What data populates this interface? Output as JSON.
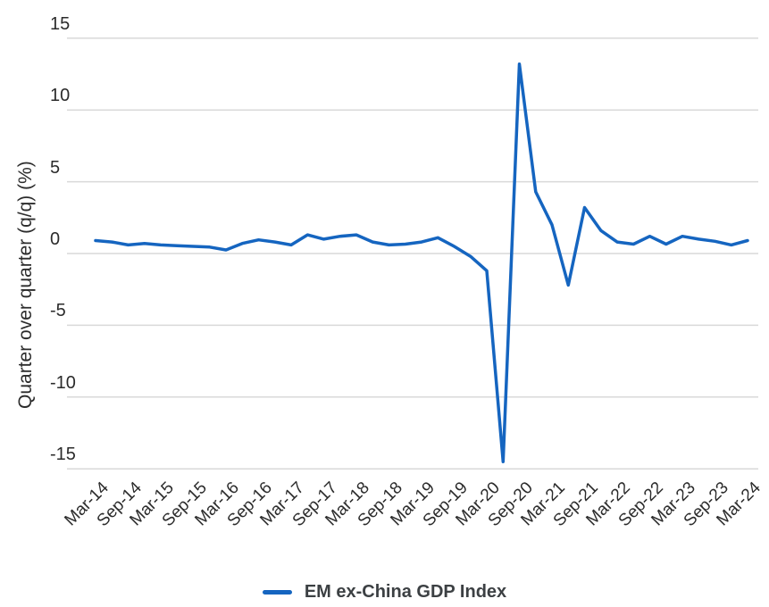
{
  "page": {
    "background": "#FFFFFF"
  },
  "chart_data": {
    "type": "line",
    "title": "",
    "xlabel": "",
    "ylabel": "Quarter over quarter (q/q) (%)",
    "ylim": [
      -16,
      16
    ],
    "yticks": [
      15,
      10,
      5,
      0,
      -5,
      -10,
      -15
    ],
    "grid": "horizontal",
    "grid_color": "#D9D9D9",
    "tick_color": "#2b2b2b",
    "legend_position": "bottom-center",
    "x": [
      "Mar-14",
      "Jun-14",
      "Sep-14",
      "Dec-14",
      "Mar-15",
      "Jun-15",
      "Sep-15",
      "Dec-15",
      "Mar-16",
      "Jun-16",
      "Sep-16",
      "Dec-16",
      "Mar-17",
      "Jun-17",
      "Sep-17",
      "Dec-17",
      "Mar-18",
      "Jun-18",
      "Sep-18",
      "Dec-18",
      "Mar-19",
      "Jun-19",
      "Sep-19",
      "Dec-19",
      "Mar-20",
      "Jun-20",
      "Sep-20",
      "Dec-20",
      "Mar-21",
      "Jun-21",
      "Sep-21",
      "Dec-21",
      "Mar-22",
      "Jun-22",
      "Sep-22",
      "Dec-22",
      "Mar-23",
      "Jun-23",
      "Sep-23",
      "Dec-23",
      "Mar-24"
    ],
    "xticks_shown": [
      "Mar-14",
      "Sep-14",
      "Mar-15",
      "Sep-15",
      "Mar-16",
      "Sep-16",
      "Mar-17",
      "Sep-17",
      "Mar-18",
      "Sep-18",
      "Mar-19",
      "Sep-19",
      "Mar-20",
      "Sep-20",
      "Mar-21",
      "Sep-21",
      "Mar-22",
      "Sep-22",
      "Mar-23",
      "Sep-23",
      "Mar-24"
    ],
    "series": [
      {
        "name": "EM ex-China GDP Index",
        "color": "#1565C0",
        "values": [
          0.9,
          0.8,
          0.6,
          0.7,
          0.6,
          0.55,
          0.5,
          0.45,
          0.25,
          0.7,
          0.95,
          0.8,
          0.6,
          1.3,
          1.0,
          1.2,
          1.3,
          0.8,
          0.6,
          0.65,
          0.8,
          1.1,
          0.5,
          -0.2,
          -1.2,
          -14.5,
          13.2,
          4.3,
          2.0,
          -2.2,
          3.2,
          1.6,
          0.8,
          0.65,
          1.2,
          0.65,
          1.2,
          1.0,
          0.85,
          0.6,
          0.9
        ]
      }
    ]
  }
}
